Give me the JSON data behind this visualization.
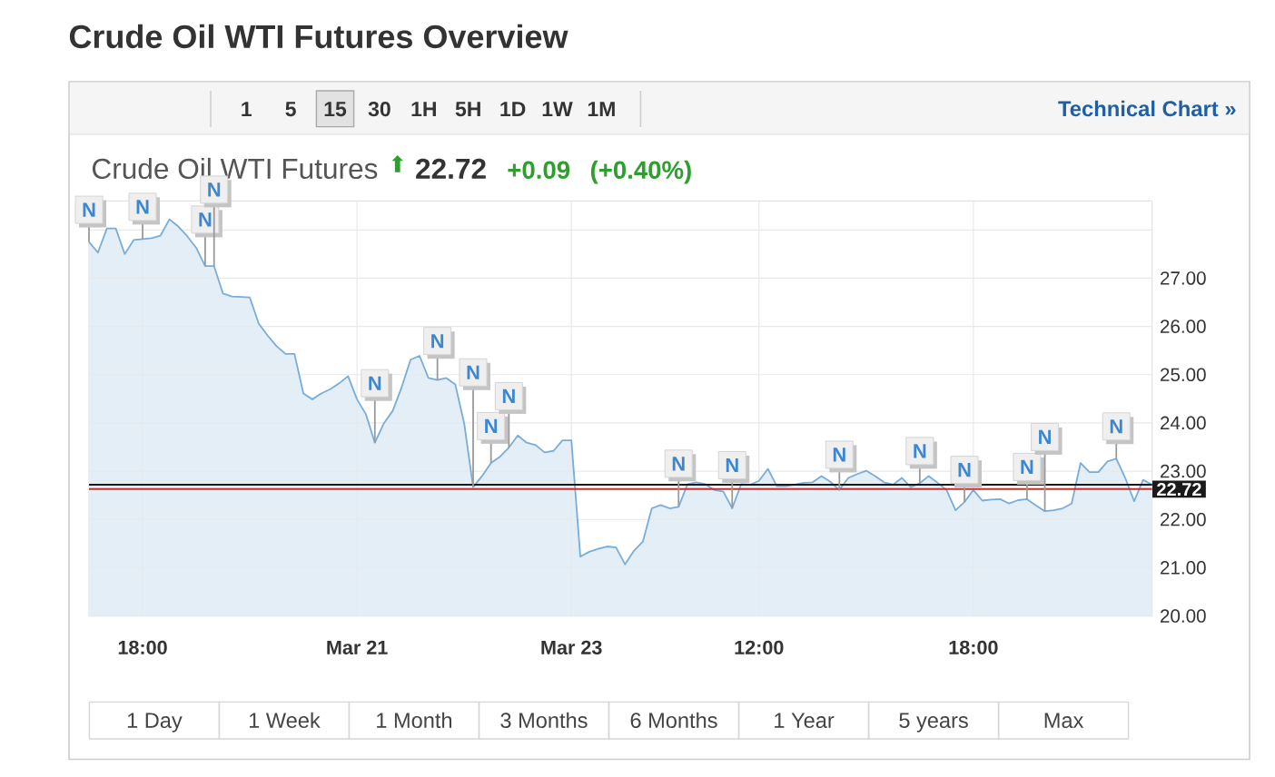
{
  "chart_data": {
    "type": "area",
    "title": "Crude Oil WTI Futures Overview",
    "subtitle": "Crude Oil WTI Futures",
    "annotations": [
      "⬆",
      "22.72",
      "+0.09",
      "(+0.40%)",
      "1",
      "5",
      "15",
      "30",
      "1H",
      "5H",
      "1D",
      "1W",
      "1M",
      "Technical Chart »",
      "1 Day",
      "1 Week",
      "1 Month",
      "3 Months",
      "6 Months",
      "1 Year",
      "5 years",
      "Max"
    ],
    "categories": [
      null,
      null,
      null,
      null,
      null,
      null,
      "18:00",
      null,
      null,
      null,
      null,
      null,
      null,
      null,
      null,
      null,
      null,
      null,
      null,
      null,
      null,
      null,
      null,
      null,
      null,
      null,
      null,
      null,
      null,
      null,
      "Mar 21",
      null,
      null,
      null,
      null,
      null,
      null,
      null,
      null,
      null,
      null,
      null,
      null,
      null,
      null,
      null,
      null,
      null,
      null,
      null,
      null,
      null,
      null,
      null,
      "Mar 23",
      null,
      null,
      null,
      null,
      null,
      null,
      null,
      null,
      null,
      null,
      null,
      null,
      null,
      null,
      null,
      null,
      null,
      null,
      null,
      null,
      "12:00",
      null,
      null,
      null,
      null,
      null,
      null,
      null,
      null,
      null,
      null,
      null,
      null,
      null,
      null,
      null,
      null,
      null,
      null,
      null,
      null,
      null,
      null,
      null,
      "18:00",
      null,
      null,
      null,
      null,
      null,
      null,
      null,
      null,
      null,
      null,
      null,
      null,
      null,
      null,
      null,
      null,
      null,
      null,
      null,
      null
    ],
    "values": [
      27.75,
      27.53,
      28.03,
      28.03,
      27.5,
      27.79,
      27.81,
      27.83,
      27.88,
      28.22,
      28.07,
      27.87,
      27.63,
      27.25,
      27.25,
      26.68,
      26.62,
      26.61,
      26.6,
      26.06,
      25.81,
      25.59,
      25.43,
      25.43,
      24.61,
      24.49,
      24.61,
      24.7,
      24.82,
      24.97,
      24.49,
      24.18,
      23.59,
      23.99,
      24.25,
      24.74,
      25.31,
      25.39,
      24.93,
      24.89,
      24.93,
      24.8,
      23.99,
      22.67,
      22.9,
      23.17,
      23.3,
      23.49,
      23.74,
      23.59,
      23.54,
      23.39,
      23.42,
      23.64,
      23.64,
      21.23,
      21.33,
      21.39,
      21.44,
      21.42,
      21.07,
      21.35,
      21.54,
      22.23,
      22.3,
      22.23,
      22.26,
      22.73,
      22.77,
      22.73,
      22.61,
      22.58,
      22.23,
      22.73,
      22.72,
      22.8,
      23.05,
      22.69,
      22.69,
      22.72,
      22.76,
      22.77,
      22.9,
      22.78,
      22.61,
      22.86,
      22.94,
      23.01,
      22.9,
      22.77,
      22.72,
      22.86,
      22.67,
      22.75,
      22.9,
      22.76,
      22.61,
      22.19,
      22.36,
      22.61,
      22.39,
      22.41,
      22.42,
      22.33,
      22.4,
      22.42,
      22.29,
      22.17,
      22.19,
      22.23,
      22.33,
      23.17,
      22.98,
      22.98,
      23.2,
      23.26,
      22.86,
      22.38,
      22.82,
      22.72
    ],
    "value_labels": [
      "N",
      null,
      null,
      null,
      null,
      null,
      "N",
      null,
      null,
      null,
      null,
      null,
      null,
      "N",
      "N",
      null,
      null,
      null,
      null,
      null,
      null,
      null,
      null,
      null,
      null,
      null,
      null,
      null,
      null,
      null,
      null,
      null,
      "N",
      null,
      null,
      null,
      null,
      null,
      null,
      "N",
      null,
      null,
      null,
      "N",
      null,
      "N",
      null,
      "N",
      null,
      null,
      null,
      null,
      null,
      null,
      null,
      null,
      null,
      null,
      null,
      null,
      null,
      null,
      null,
      null,
      null,
      null,
      "N",
      null,
      null,
      null,
      null,
      null,
      "N",
      null,
      null,
      null,
      null,
      null,
      null,
      null,
      null,
      null,
      null,
      null,
      "N",
      null,
      null,
      null,
      null,
      null,
      null,
      null,
      null,
      "N",
      null,
      null,
      null,
      null,
      "N",
      null,
      null,
      null,
      null,
      null,
      null,
      "N",
      null,
      "N",
      null,
      null,
      null,
      null,
      null,
      null,
      null,
      "N",
      null,
      null,
      null,
      null
    ],
    "color": "#78acd9",
    "ylim": [
      20,
      28.6
    ],
    "yticks": [
      {
        "value": 20,
        "label": "20.00"
      },
      {
        "value": 21,
        "label": "21.00"
      },
      {
        "value": 22,
        "label": "22.00"
      },
      {
        "value": 23,
        "label": "23.00"
      },
      {
        "value": 24,
        "label": "24.00"
      },
      {
        "value": 25,
        "label": "25.00"
      },
      {
        "value": 26,
        "label": "26.00"
      },
      {
        "value": 27,
        "label": "27.00"
      },
      {
        "value": 28,
        "label": null
      }
    ],
    "grid": true,
    "ref_lines": [
      {
        "axis": "y",
        "value": 22.72,
        "label": "22.72",
        "color": "#1a1a1a"
      },
      {
        "axis": "y",
        "value": 22.63,
        "color": "#c9302c"
      }
    ]
  }
}
